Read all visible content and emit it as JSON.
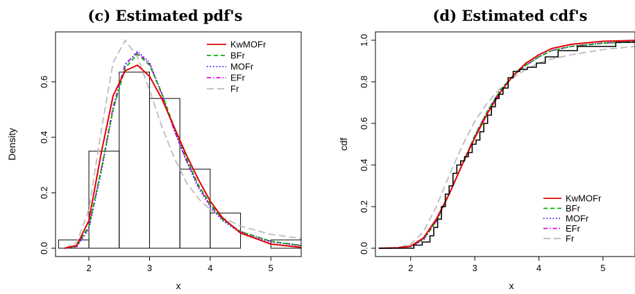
{
  "chart_data": [
    {
      "type": "histogram+line",
      "title": "(c) Estimated pdf's",
      "xlabel": "x",
      "ylabel": "Density",
      "xlim": [
        1.45,
        5.5
      ],
      "ylim": [
        -0.03,
        0.78
      ],
      "xticks": [
        "2",
        "3",
        "4",
        "5"
      ],
      "yticks": [
        "0.0",
        "0.2",
        "0.4",
        "0.6"
      ],
      "legend_position": "top-right",
      "histogram": {
        "bin_edges": [
          1.5,
          2.0,
          2.5,
          3.0,
          3.5,
          4.0,
          4.5,
          5.0,
          5.5
        ],
        "density": [
          0.03,
          0.35,
          0.635,
          0.54,
          0.285,
          0.127,
          0.0,
          0.03
        ]
      },
      "series": [
        {
          "name": "KwMOFr",
          "color": "#e00000",
          "dash": "solid",
          "x": [
            1.6,
            1.8,
            2.0,
            2.2,
            2.4,
            2.6,
            2.8,
            3.0,
            3.2,
            3.4,
            3.6,
            3.8,
            4.0,
            4.2,
            4.5,
            5.0,
            5.5
          ],
          "y": [
            0.0,
            0.01,
            0.1,
            0.34,
            0.55,
            0.64,
            0.66,
            0.62,
            0.54,
            0.44,
            0.34,
            0.25,
            0.17,
            0.11,
            0.055,
            0.015,
            0.003
          ]
        },
        {
          "name": "BFr",
          "color": "#00b000",
          "dash": "dashed",
          "x": [
            1.6,
            1.8,
            2.0,
            2.2,
            2.4,
            2.6,
            2.8,
            3.0,
            3.2,
            3.4,
            3.6,
            3.8,
            4.0,
            4.2,
            4.5,
            5.0,
            5.5
          ],
          "y": [
            0.0,
            0.008,
            0.08,
            0.28,
            0.5,
            0.65,
            0.7,
            0.66,
            0.56,
            0.44,
            0.33,
            0.23,
            0.16,
            0.105,
            0.06,
            0.025,
            0.01
          ]
        },
        {
          "name": "MOFr",
          "color": "#1a1aff",
          "dash": "dotted",
          "x": [
            1.6,
            1.8,
            2.0,
            2.2,
            2.4,
            2.6,
            2.8,
            3.0,
            3.2,
            3.4,
            3.6,
            3.8,
            4.0,
            4.2,
            4.5,
            5.0,
            5.5
          ],
          "y": [
            0.0,
            0.006,
            0.07,
            0.27,
            0.5,
            0.66,
            0.71,
            0.67,
            0.56,
            0.43,
            0.32,
            0.22,
            0.15,
            0.1,
            0.055,
            0.022,
            0.009
          ]
        },
        {
          "name": "EFr",
          "color": "#e000e0",
          "dash": "dashdot",
          "x": [
            1.6,
            1.8,
            2.0,
            2.2,
            2.4,
            2.6,
            2.8,
            3.0,
            3.2,
            3.4,
            3.6,
            3.8,
            4.0,
            4.2,
            4.5,
            5.0,
            5.5
          ],
          "y": [
            0.0,
            0.006,
            0.075,
            0.28,
            0.51,
            0.665,
            0.705,
            0.665,
            0.555,
            0.43,
            0.32,
            0.225,
            0.155,
            0.105,
            0.06,
            0.025,
            0.01
          ]
        },
        {
          "name": "Fr",
          "color": "#bbbbbb",
          "dash": "longdash",
          "x": [
            1.6,
            1.8,
            2.0,
            2.2,
            2.4,
            2.6,
            2.8,
            3.0,
            3.2,
            3.4,
            3.6,
            3.8,
            4.0,
            4.2,
            4.5,
            5.0,
            5.5
          ],
          "y": [
            0.0,
            0.02,
            0.14,
            0.42,
            0.67,
            0.75,
            0.69,
            0.57,
            0.44,
            0.33,
            0.24,
            0.18,
            0.14,
            0.11,
            0.08,
            0.05,
            0.035
          ]
        }
      ]
    },
    {
      "type": "line",
      "title": "(d) Estimated cdf's",
      "xlabel": "x",
      "ylabel": "cdf",
      "xlim": [
        1.45,
        5.5
      ],
      "ylim": [
        -0.04,
        1.04
      ],
      "xticks": [
        "2",
        "3",
        "4",
        "5"
      ],
      "yticks": [
        "0.0",
        "0.2",
        "0.4",
        "0.6",
        "0.8",
        "1.0"
      ],
      "legend_position": "bottom-right",
      "empirical_cdf": {
        "x": [
          1.5,
          2.05,
          2.18,
          2.3,
          2.36,
          2.42,
          2.48,
          2.54,
          2.6,
          2.66,
          2.72,
          2.78,
          2.84,
          2.9,
          2.96,
          3.02,
          3.08,
          3.14,
          3.2,
          3.26,
          3.32,
          3.38,
          3.44,
          3.52,
          3.6,
          3.7,
          3.82,
          3.96,
          4.1,
          4.3,
          4.6,
          5.2,
          5.5
        ],
        "y": [
          0.0,
          0.015,
          0.03,
          0.06,
          0.1,
          0.14,
          0.2,
          0.26,
          0.3,
          0.36,
          0.4,
          0.42,
          0.44,
          0.46,
          0.5,
          0.52,
          0.56,
          0.6,
          0.64,
          0.68,
          0.72,
          0.74,
          0.77,
          0.82,
          0.85,
          0.86,
          0.87,
          0.89,
          0.92,
          0.95,
          0.97,
          0.99,
          0.99
        ]
      },
      "series": [
        {
          "name": "KwMOFr",
          "color": "#e00000",
          "dash": "solid",
          "x": [
            1.5,
            1.8,
            2.0,
            2.2,
            2.4,
            2.6,
            2.8,
            3.0,
            3.2,
            3.4,
            3.6,
            3.8,
            4.0,
            4.2,
            4.5,
            5.0,
            5.5
          ],
          "y": [
            0.0,
            0.002,
            0.01,
            0.05,
            0.14,
            0.26,
            0.4,
            0.53,
            0.65,
            0.75,
            0.83,
            0.89,
            0.93,
            0.96,
            0.98,
            0.995,
            0.999
          ]
        },
        {
          "name": "BFr",
          "color": "#00b000",
          "dash": "dashed",
          "x": [
            1.5,
            1.8,
            2.0,
            2.2,
            2.4,
            2.6,
            2.8,
            3.0,
            3.2,
            3.4,
            3.6,
            3.8,
            4.0,
            4.2,
            4.5,
            5.0,
            5.5
          ],
          "y": [
            0.0,
            0.002,
            0.01,
            0.045,
            0.13,
            0.26,
            0.4,
            0.54,
            0.66,
            0.76,
            0.83,
            0.88,
            0.92,
            0.95,
            0.97,
            0.985,
            0.992
          ]
        },
        {
          "name": "MOFr",
          "color": "#1a1aff",
          "dash": "dotted",
          "x": [
            1.5,
            1.8,
            2.0,
            2.2,
            2.4,
            2.6,
            2.8,
            3.0,
            3.2,
            3.4,
            3.6,
            3.8,
            4.0,
            4.2,
            4.5,
            5.0,
            5.5
          ],
          "y": [
            0.0,
            0.001,
            0.008,
            0.04,
            0.13,
            0.26,
            0.4,
            0.54,
            0.66,
            0.76,
            0.83,
            0.88,
            0.92,
            0.95,
            0.97,
            0.987,
            0.994
          ]
        },
        {
          "name": "EFr",
          "color": "#e000e0",
          "dash": "dashdot",
          "x": [
            1.5,
            1.8,
            2.0,
            2.2,
            2.4,
            2.6,
            2.8,
            3.0,
            3.2,
            3.4,
            3.6,
            3.8,
            4.0,
            4.2,
            4.5,
            5.0,
            5.5
          ],
          "y": [
            0.0,
            0.001,
            0.009,
            0.042,
            0.13,
            0.26,
            0.4,
            0.54,
            0.66,
            0.76,
            0.83,
            0.88,
            0.92,
            0.95,
            0.97,
            0.986,
            0.993
          ]
        },
        {
          "name": "Fr",
          "color": "#bbbbbb",
          "dash": "longdash",
          "x": [
            1.5,
            1.8,
            2.0,
            2.2,
            2.4,
            2.6,
            2.8,
            3.0,
            3.2,
            3.4,
            3.6,
            3.8,
            4.0,
            4.2,
            4.5,
            5.0,
            5.5
          ],
          "y": [
            0.0,
            0.003,
            0.02,
            0.08,
            0.2,
            0.35,
            0.49,
            0.61,
            0.7,
            0.77,
            0.82,
            0.86,
            0.89,
            0.91,
            0.93,
            0.955,
            0.97
          ]
        }
      ]
    }
  ]
}
